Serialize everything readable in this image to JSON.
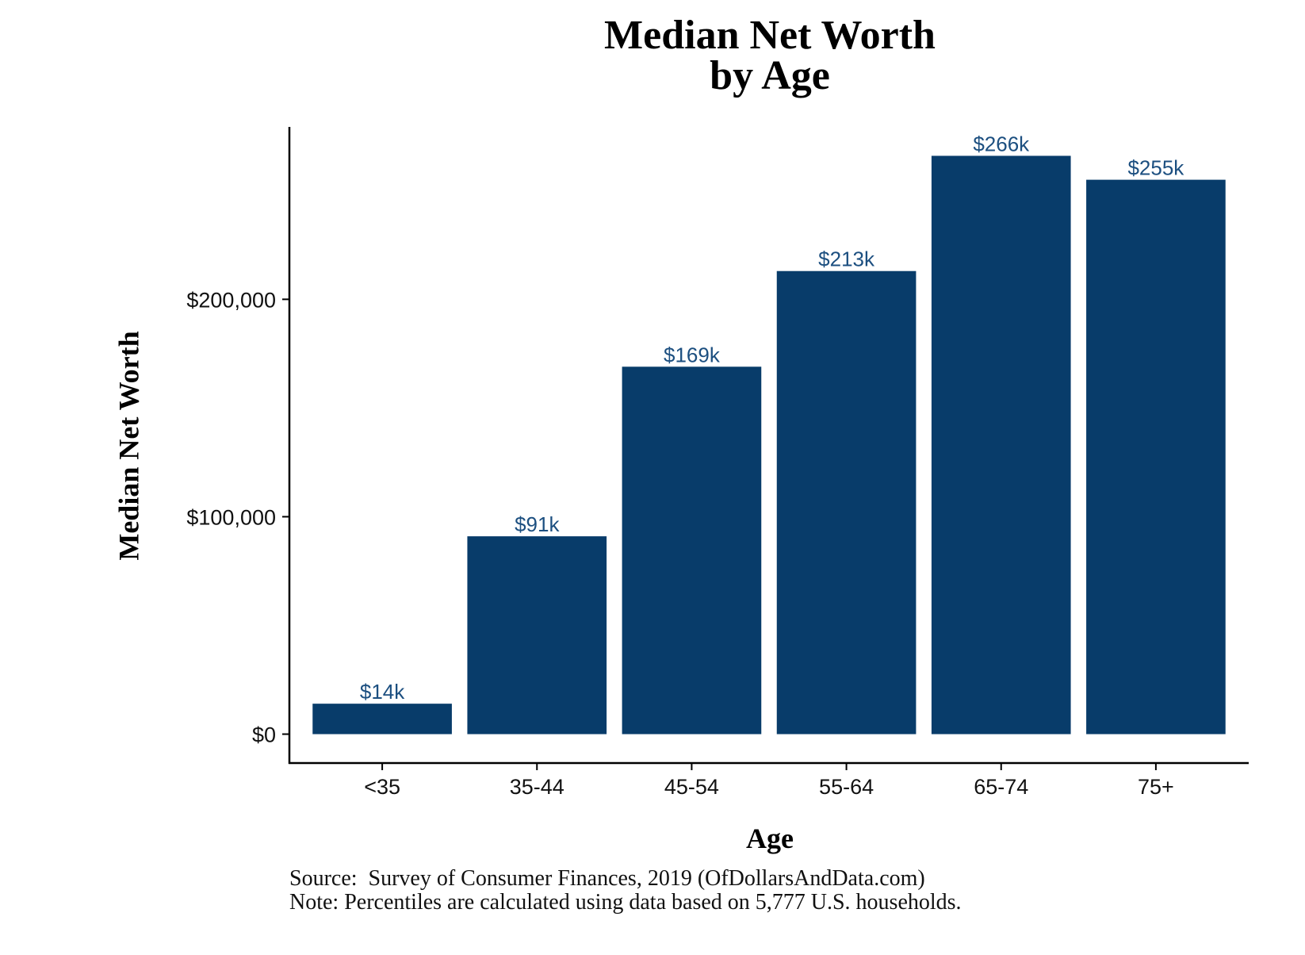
{
  "chart_data": {
    "type": "bar",
    "title": [
      "Median Net Worth",
      "by Age"
    ],
    "xlabel": "Age",
    "ylabel": "Median Net Worth",
    "categories": [
      "<35",
      "35-44",
      "45-54",
      "55-64",
      "65-74",
      "75+"
    ],
    "values": [
      14000,
      91000,
      169000,
      213000,
      266000,
      255000
    ],
    "data_labels": [
      "$14k",
      "$91k",
      "$169k",
      "$213k",
      "$266k",
      "$255k"
    ],
    "yticks": [
      0,
      100000,
      200000
    ],
    "ytick_labels": [
      "$0",
      "$100,000",
      "$200,000"
    ],
    "ylim": [
      -13300,
      279300
    ],
    "grid": false,
    "legend": "none",
    "bar_color": "#083c6a",
    "label_color": "#1c4f80"
  },
  "footnotes": {
    "source": "Source:  Survey of Consumer Finances, 2019 (OfDollarsAndData.com)",
    "note": "Note: Percentiles are calculated using data based on 5,777 U.S. households."
  }
}
